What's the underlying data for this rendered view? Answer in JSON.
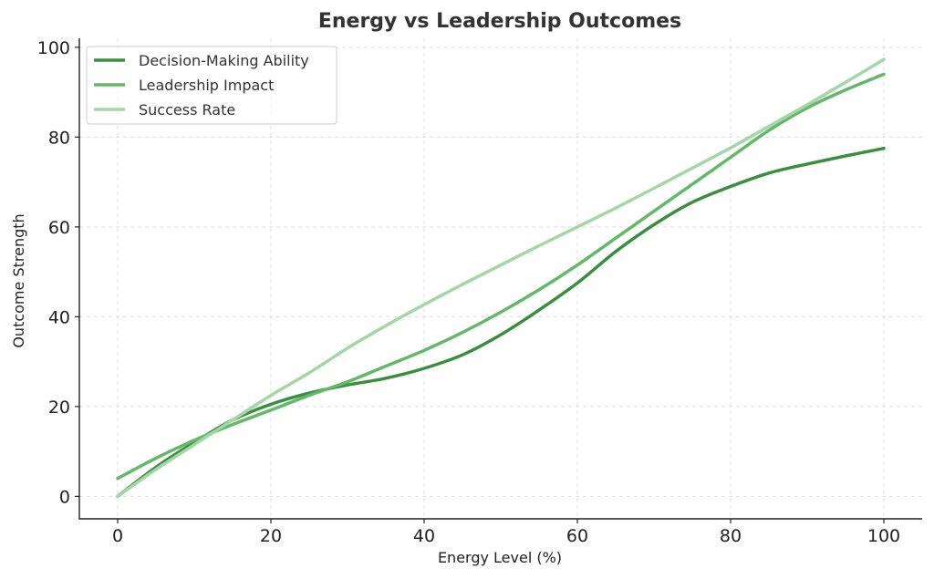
{
  "chart_data": {
    "type": "line",
    "title": "Energy vs Leadership Outcomes",
    "xlabel": "Energy Level (%)",
    "ylabel": "Outcome Strength",
    "xlim": [
      -5,
      105
    ],
    "ylim": [
      -5,
      102
    ],
    "xticks": [
      0,
      20,
      40,
      60,
      80,
      100
    ],
    "yticks": [
      0,
      20,
      40,
      60,
      80,
      100
    ],
    "grid": true,
    "legend_position": "top-left",
    "series": [
      {
        "name": "Decision-Making Ability",
        "color": "#3a8f3f",
        "x": [
          0,
          5,
          10,
          15,
          20,
          25,
          30,
          35,
          40,
          45,
          50,
          55,
          60,
          65,
          70,
          75,
          80,
          85,
          90,
          95,
          100
        ],
        "y": [
          0,
          6.5,
          12,
          17,
          20.5,
          23,
          24.8,
          26.3,
          28.5,
          31.5,
          36,
          41.5,
          47.5,
          54.5,
          60.5,
          65.5,
          69,
          72,
          74,
          75.8,
          77.5
        ]
      },
      {
        "name": "Leadership Impact",
        "color": "#63b86a",
        "x": [
          0,
          5,
          10,
          15,
          20,
          25,
          30,
          35,
          40,
          45,
          50,
          55,
          60,
          65,
          70,
          75,
          80,
          85,
          90,
          95,
          100
        ],
        "y": [
          4,
          8.5,
          12.5,
          16,
          19.2,
          22.5,
          25.5,
          29,
          32.5,
          36.5,
          41,
          46,
          51.5,
          57.5,
          63.5,
          69.5,
          75.5,
          81.5,
          86.5,
          90.5,
          94
        ]
      },
      {
        "name": "Success Rate",
        "color": "#a5d6a7",
        "x": [
          0,
          5,
          10,
          15,
          20,
          25,
          30,
          35,
          40,
          45,
          50,
          55,
          60,
          65,
          70,
          75,
          80,
          85,
          90,
          95,
          100
        ],
        "y": [
          0,
          6,
          11.5,
          17,
          22.5,
          27.5,
          33,
          38,
          42.7,
          47.2,
          51.5,
          55.8,
          60,
          64.2,
          68.6,
          73.1,
          77.6,
          82.4,
          87.2,
          92.2,
          97.3
        ]
      }
    ]
  }
}
